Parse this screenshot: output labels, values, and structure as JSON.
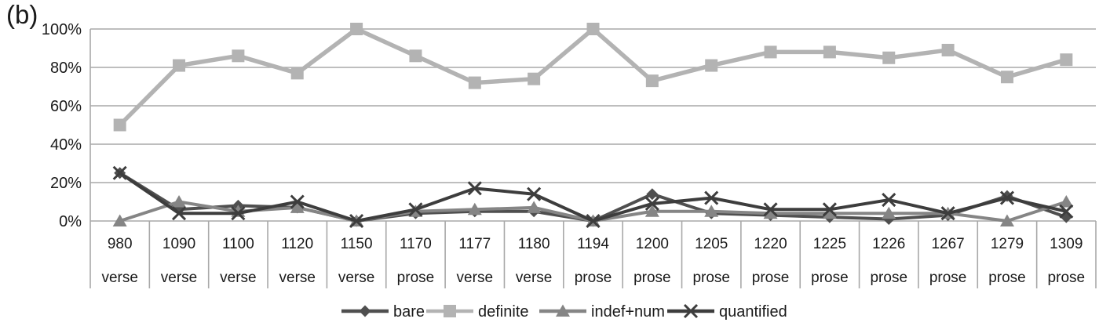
{
  "figure": {
    "label": "(b)"
  },
  "chart_data": {
    "type": "line",
    "title": "",
    "xlabel": "",
    "ylabel": "",
    "ylim": [
      0,
      100
    ],
    "yticks": [
      "0%",
      "20%",
      "40%",
      "60%",
      "80%",
      "100%"
    ],
    "grid": "horizontal-only",
    "legend_position": "bottom-center",
    "axis_color": "#a8a8a8",
    "text_color": "#1a1a1a",
    "categories_year": [
      "980",
      "1090",
      "1100",
      "1120",
      "1150",
      "1170",
      "1177",
      "1180",
      "1194",
      "1200",
      "1205",
      "1220",
      "1225",
      "1226",
      "1267",
      "1279",
      "1309"
    ],
    "categories_genre": [
      "verse",
      "verse",
      "verse",
      "verse",
      "verse",
      "prose",
      "verse",
      "verse",
      "prose",
      "prose",
      "prose",
      "prose",
      "prose",
      "prose",
      "prose",
      "prose",
      "prose"
    ],
    "series": [
      {
        "name": "bare",
        "marker": "diamond",
        "color": "#4f4f4f",
        "line_width": 4,
        "values": [
          25,
          6,
          8,
          7,
          0,
          4,
          5,
          5,
          0,
          14,
          4,
          3,
          2,
          1,
          3,
          13,
          2
        ]
      },
      {
        "name": "definite",
        "marker": "square",
        "color": "#b3b3b3",
        "line_width": 5.5,
        "values": [
          50,
          81,
          86,
          77,
          100,
          86,
          72,
          74,
          100,
          73,
          81,
          88,
          88,
          85,
          89,
          75,
          84
        ]
      },
      {
        "name": "indef+num",
        "marker": "triangle",
        "color": "#858585",
        "line_width": 4,
        "values": [
          0,
          10,
          5,
          7,
          0,
          5,
          6,
          7,
          0,
          5,
          5,
          4,
          4,
          4,
          4,
          0,
          10
        ]
      },
      {
        "name": "quantified",
        "marker": "x",
        "color": "#3d3d3d",
        "line_width": 4,
        "values": [
          25,
          4,
          4,
          10,
          0,
          6,
          17,
          14,
          0,
          9,
          12,
          6,
          6,
          11,
          4,
          12,
          5
        ]
      }
    ]
  }
}
